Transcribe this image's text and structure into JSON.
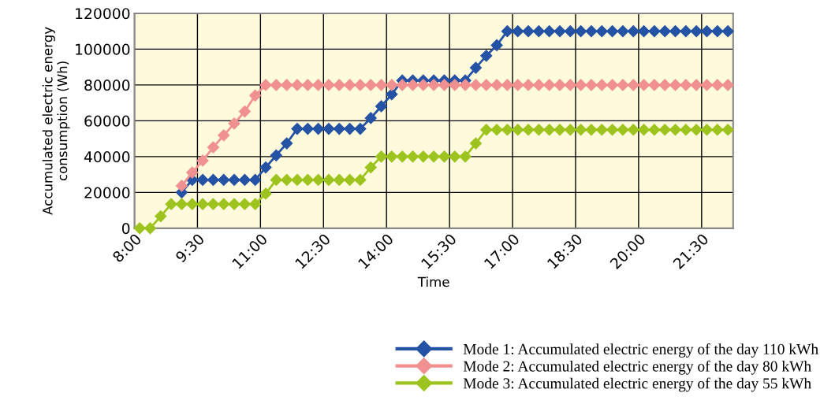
{
  "chart_data": {
    "type": "line",
    "xlabel": "Time",
    "ylabel": "Accumulated electric energy\nconsumption (Wh)",
    "x": [
      8.125,
      8.375,
      8.625,
      8.875,
      9.125,
      9.375,
      9.625,
      9.875,
      10.125,
      10.375,
      10.625,
      10.875,
      11.125,
      11.375,
      11.625,
      11.875,
      12.125,
      12.375,
      12.625,
      12.875,
      13.125,
      13.375,
      13.625,
      13.875,
      14.125,
      14.375,
      14.625,
      14.875,
      15.125,
      15.375,
      15.625,
      15.875,
      16.125,
      16.375,
      16.625,
      16.875,
      17.125,
      17.375,
      17.625,
      17.875,
      18.125,
      18.375,
      18.625,
      18.875,
      19.125,
      19.375,
      19.625,
      19.875,
      20.125,
      20.375,
      20.625,
      20.875,
      21.125,
      21.375,
      21.625,
      21.875,
      22.125
    ],
    "series": [
      {
        "name": "Mode 1: Accumulated electric energy of the day 110 kWh",
        "color": "#2452a4",
        "values": [
          null,
          null,
          null,
          null,
          20000,
          27000,
          27000,
          27000,
          27000,
          27000,
          27000,
          27000,
          34000,
          40700,
          47400,
          55500,
          55500,
          55500,
          55500,
          55500,
          55500,
          55500,
          61500,
          68100,
          74800,
          82500,
          82500,
          82500,
          82500,
          82500,
          82500,
          82500,
          89600,
          96300,
          102200,
          110000,
          110000,
          110000,
          110000,
          110000,
          110000,
          110000,
          110000,
          110000,
          110000,
          110000,
          110000,
          110000,
          110000,
          110000,
          110000,
          110000,
          110000,
          110000,
          110000,
          110000,
          110000
        ]
      },
      {
        "name": "Mode 2: Accumulated electric energy of the day 80 kWh",
        "color": "#f09090",
        "values": [
          null,
          null,
          null,
          null,
          23700,
          31100,
          37800,
          45200,
          51900,
          58500,
          65200,
          74100,
          80000,
          80000,
          80000,
          80000,
          80000,
          80000,
          80000,
          80000,
          80000,
          80000,
          80000,
          80000,
          80000,
          80000,
          80000,
          80000,
          80000,
          80000,
          80000,
          80000,
          80000,
          80000,
          80000,
          80000,
          80000,
          80000,
          80000,
          80000,
          80000,
          80000,
          80000,
          80000,
          80000,
          80000,
          80000,
          80000,
          80000,
          80000,
          80000,
          80000,
          80000,
          80000,
          80000,
          80000,
          80000
        ]
      },
      {
        "name": "Mode 3: Accumulated electric energy of the day 55 kWh",
        "color": "#9dc41e",
        "values": [
          0,
          0,
          6700,
          13500,
          13500,
          13500,
          13500,
          13500,
          13500,
          13500,
          13500,
          13500,
          19300,
          27000,
          27000,
          27000,
          27000,
          27000,
          27000,
          27000,
          27000,
          27000,
          34000,
          40000,
          40000,
          40000,
          40000,
          40000,
          40000,
          40000,
          40000,
          40000,
          47400,
          55000,
          55000,
          55000,
          55000,
          55000,
          55000,
          55000,
          55000,
          55000,
          55000,
          55000,
          55000,
          55000,
          55000,
          55000,
          55000,
          55000,
          55000,
          55000,
          55000,
          55000,
          55000,
          55000,
          55000
        ]
      }
    ],
    "xlim": [
      8,
      22.25
    ],
    "xticks": [
      {
        "value": 8,
        "label": "8:00"
      },
      {
        "value": 9.5,
        "label": "9:30"
      },
      {
        "value": 11,
        "label": "11:00"
      },
      {
        "value": 12.5,
        "label": "12:30"
      },
      {
        "value": 14,
        "label": "14:00"
      },
      {
        "value": 15.5,
        "label": "15:30"
      },
      {
        "value": 17,
        "label": "17:00"
      },
      {
        "value": 18.5,
        "label": "18:30"
      },
      {
        "value": 20,
        "label": "20:00"
      },
      {
        "value": 21.5,
        "label": "21:30"
      }
    ],
    "ylim": [
      0,
      120000
    ],
    "yticks": [
      0,
      20000,
      40000,
      60000,
      80000,
      100000,
      120000
    ],
    "grid": true,
    "legend": "bottom right",
    "marker": "diamond",
    "line_style": "solid"
  }
}
